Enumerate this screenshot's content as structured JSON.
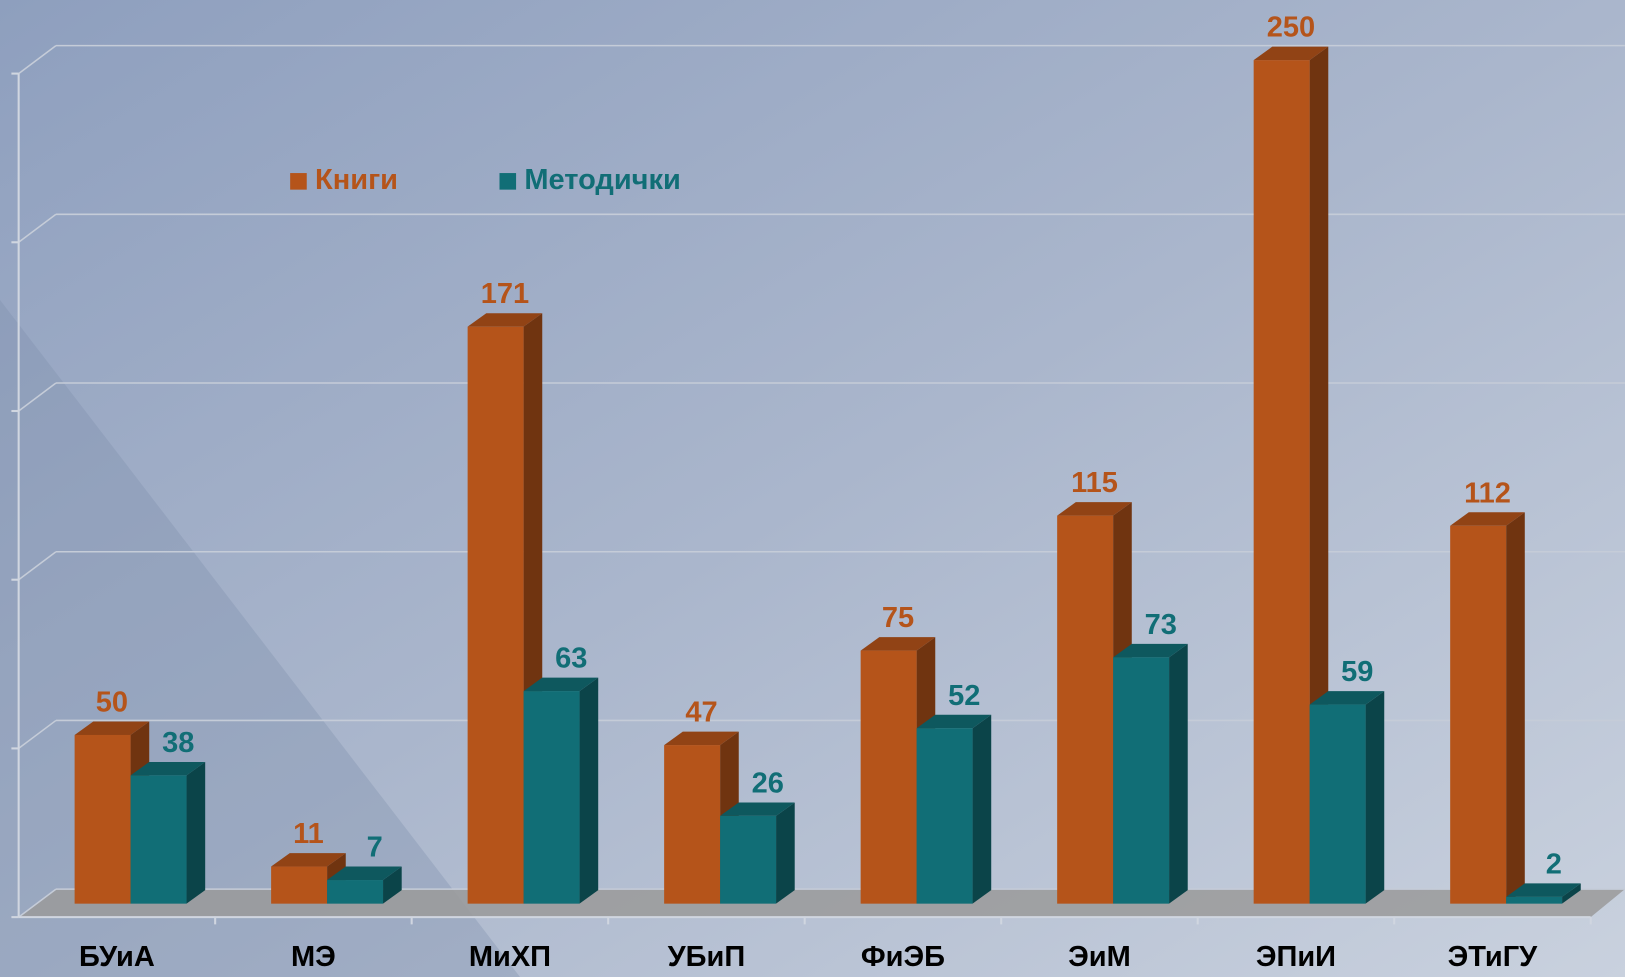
{
  "chart_data": {
    "type": "bar3d",
    "categories": [
      "БУиА",
      "МЭ",
      "МиХП",
      "УБиП",
      "ФиЭБ",
      "ЭиМ",
      "ЭПиИ",
      "ЭТиГУ"
    ],
    "series": [
      {
        "name": "Книги",
        "color": "#b5541a",
        "values": [
          50,
          11,
          171,
          47,
          75,
          115,
          250,
          112
        ]
      },
      {
        "name": "Методички",
        "color": "#116e76",
        "values": [
          38,
          7,
          63,
          26,
          52,
          73,
          59,
          2
        ]
      }
    ],
    "ylim": [
      0,
      250
    ],
    "yticks": [
      0,
      50,
      100,
      150,
      200,
      250
    ],
    "grid": true,
    "legend": "top-left"
  }
}
